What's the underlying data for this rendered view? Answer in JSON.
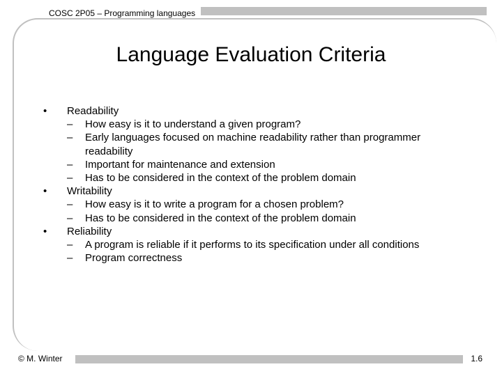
{
  "colors": {
    "bar": "#c0c0c0",
    "border": "#c0c0c0",
    "text": "#000000",
    "background": "#ffffff"
  },
  "typography": {
    "title_fontsize": 30,
    "body_fontsize": 15,
    "meta_fontsize": 12,
    "font_family": "Arial"
  },
  "header": {
    "course": "COSC 2P05 – Programming languages"
  },
  "title": "Language Evaluation Criteria",
  "content": {
    "items": [
      {
        "label": "Readability",
        "subs": [
          "How easy is it to understand a given program?",
          "Early languages focused on machine readability rather than programmer readability",
          "Important for maintenance and extension",
          "Has to be considered in the context of the problem domain"
        ]
      },
      {
        "label": "Writability",
        "subs": [
          "How easy is it to write a program for a chosen problem?",
          "Has to be considered in the context of the problem domain"
        ]
      },
      {
        "label": "Reliability",
        "subs": [
          "A program is reliable if it performs to its specification under all conditions",
          "Program correctness"
        ]
      }
    ]
  },
  "footer": {
    "author": "© M. Winter",
    "page": "1.6"
  }
}
